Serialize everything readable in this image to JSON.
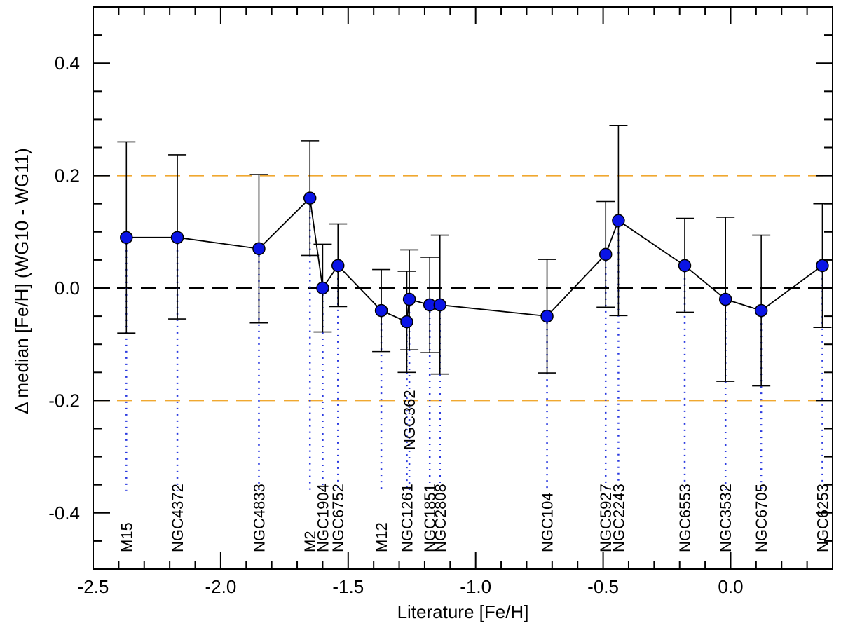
{
  "chart_data": {
    "type": "scatter",
    "xlabel": "Literature [Fe/H]",
    "ylabel": "Δ  median [Fe/H]    (WG10 - WG11)",
    "xlim": [
      -2.5,
      0.4
    ],
    "ylim": [
      -0.5,
      0.5
    ],
    "xticks": [
      "-2.5",
      "-2.0",
      "-1.5",
      "-1.0",
      "-0.5",
      "0.0"
    ],
    "yticks": [
      "-0.4",
      "-0.2",
      "0.0",
      "0.2",
      "0.4"
    ],
    "xtick_values": [
      -2.5,
      -2.0,
      -1.5,
      -1.0,
      -0.5,
      0.0
    ],
    "ytick_values": [
      -0.4,
      -0.2,
      0.0,
      0.2,
      0.4
    ],
    "reference_lines": [
      {
        "y": 0.0,
        "color": "#000000",
        "style": "dashed"
      },
      {
        "y": 0.2,
        "color": "#f0a830",
        "style": "dashed"
      },
      {
        "y": -0.2,
        "color": "#f0a830",
        "style": "dashed"
      }
    ],
    "marker_color": "#0a14e6",
    "line_color": "#000000",
    "guide_color": "#2b3ae0",
    "grid": false,
    "points": [
      {
        "label": "M15",
        "x": -2.37,
        "y": 0.09,
        "err_low": -0.08,
        "err_high": 0.26
      },
      {
        "label": "NGC4372",
        "x": -2.17,
        "y": 0.09,
        "err_low": -0.055,
        "err_high": 0.237
      },
      {
        "label": "NGC4833",
        "x": -1.85,
        "y": 0.07,
        "err_low": -0.062,
        "err_high": 0.202
      },
      {
        "label": "M2",
        "x": -1.65,
        "y": 0.16,
        "err_low": 0.058,
        "err_high": 0.262
      },
      {
        "label": "NGC1904",
        "x": -1.6,
        "y": 0.0,
        "err_low": -0.078,
        "err_high": 0.078
      },
      {
        "label": "NGC6752",
        "x": -1.54,
        "y": 0.04,
        "err_low": -0.033,
        "err_high": 0.114
      },
      {
        "label": "M12",
        "x": -1.37,
        "y": -0.04,
        "err_low": -0.113,
        "err_high": 0.033
      },
      {
        "label": "NGC1261",
        "x": -1.27,
        "y": -0.06,
        "err_low": -0.15,
        "err_high": 0.03
      },
      {
        "label": "NGC362",
        "x": -1.26,
        "y": -0.02,
        "err_low": -0.11,
        "err_high": 0.068
      },
      {
        "label": "NGC1851",
        "x": -1.18,
        "y": -0.03,
        "err_low": -0.115,
        "err_high": 0.055
      },
      {
        "label": "NGC2808",
        "x": -1.14,
        "y": -0.03,
        "err_low": -0.153,
        "err_high": 0.094
      },
      {
        "label": "NGC104",
        "x": -0.72,
        "y": -0.05,
        "err_low": -0.151,
        "err_high": 0.051
      },
      {
        "label": "NGC5927",
        "x": -0.49,
        "y": 0.06,
        "err_low": -0.034,
        "err_high": 0.154
      },
      {
        "label": "NGC2243",
        "x": -0.44,
        "y": 0.12,
        "err_low": -0.049,
        "err_high": 0.289
      },
      {
        "label": "NGC6553",
        "x": -0.18,
        "y": 0.04,
        "err_low": -0.043,
        "err_high": 0.124
      },
      {
        "label": "NGC3532",
        "x": -0.02,
        "y": -0.02,
        "err_low": -0.166,
        "err_high": 0.126
      },
      {
        "label": "NGC6705",
        "x": 0.12,
        "y": -0.04,
        "err_low": -0.174,
        "err_high": 0.094
      },
      {
        "label": "NGC6253",
        "x": 0.36,
        "y": 0.04,
        "err_low": -0.07,
        "err_high": 0.15
      }
    ]
  }
}
